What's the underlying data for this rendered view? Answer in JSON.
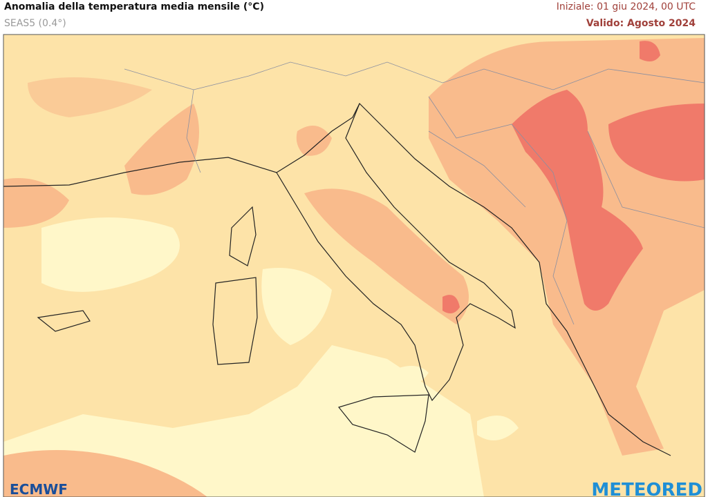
{
  "header": {
    "title": "Anomalia della temperatura media mensile (°C)",
    "subtitle": "SEAS5 (0.4°)",
    "initial": "Iniziale: 01 giu 2024, 00 UTC",
    "valid": "Valido: Agosto 2024"
  },
  "logos": {
    "left": "ECMWF",
    "right": "METEORED"
  }
}
